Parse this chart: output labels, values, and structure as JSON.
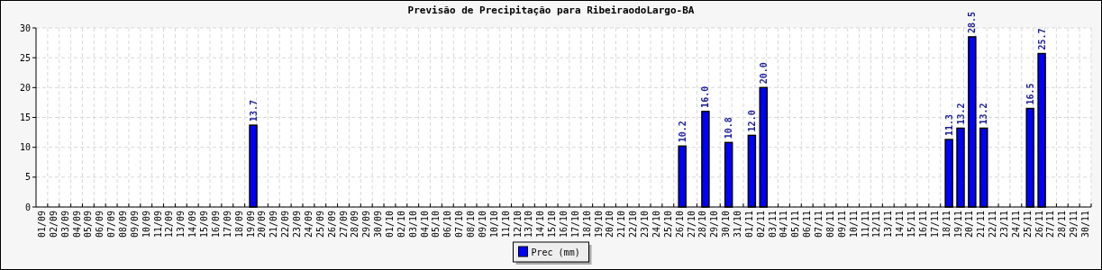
{
  "chart_data": {
    "type": "bar",
    "title": "Previsão de Precipitação para RibeiraodoLargo-BA",
    "categories": [
      "01/09",
      "02/09",
      "03/09",
      "04/09",
      "05/09",
      "06/09",
      "07/09",
      "08/09",
      "09/09",
      "10/09",
      "11/09",
      "12/09",
      "13/09",
      "14/09",
      "15/09",
      "16/09",
      "17/09",
      "18/09",
      "19/09",
      "20/09",
      "21/09",
      "22/09",
      "23/09",
      "24/09",
      "25/09",
      "26/09",
      "27/09",
      "28/09",
      "29/09",
      "30/09",
      "01/10",
      "02/10",
      "03/10",
      "04/10",
      "05/10",
      "06/10",
      "07/10",
      "08/10",
      "09/10",
      "10/10",
      "11/10",
      "12/10",
      "13/10",
      "14/10",
      "15/10",
      "16/10",
      "17/10",
      "18/10",
      "19/10",
      "20/10",
      "21/10",
      "22/10",
      "23/10",
      "24/10",
      "25/10",
      "26/10",
      "27/10",
      "28/10",
      "29/10",
      "30/10",
      "31/10",
      "01/11",
      "02/11",
      "03/11",
      "04/11",
      "05/11",
      "06/11",
      "07/11",
      "08/11",
      "09/11",
      "10/11",
      "11/11",
      "12/11",
      "13/11",
      "14/11",
      "15/11",
      "16/11",
      "17/11",
      "18/11",
      "19/11",
      "20/11",
      "21/11",
      "22/11",
      "23/11",
      "24/11",
      "25/11",
      "26/11",
      "27/11",
      "28/11",
      "29/11",
      "30/11"
    ],
    "series": [
      {
        "name": "Prec (mm)",
        "color": "#0000ff",
        "values": [
          0,
          0,
          0,
          0,
          0,
          0,
          0,
          0,
          0,
          0,
          0,
          0,
          0,
          0,
          0,
          0,
          0,
          0,
          13.7,
          0,
          0,
          0,
          0,
          0,
          0,
          0,
          0,
          0,
          0,
          0,
          0,
          0,
          0,
          0,
          0,
          0,
          0,
          0,
          0,
          0,
          0,
          0,
          0,
          0,
          0,
          0,
          0,
          0,
          0,
          0,
          0,
          0,
          0,
          0,
          0,
          10.2,
          0,
          16.0,
          0,
          10.8,
          0,
          12.0,
          20.0,
          0,
          0,
          0,
          0,
          0,
          0,
          0,
          0,
          0,
          0,
          0,
          0,
          0,
          0,
          0,
          11.3,
          13.2,
          28.5,
          13.2,
          0,
          0,
          0,
          16.5,
          25.7,
          0,
          0,
          0,
          0
        ],
        "value_labels": [
          null,
          null,
          null,
          null,
          null,
          null,
          null,
          null,
          null,
          null,
          null,
          null,
          null,
          null,
          null,
          null,
          null,
          null,
          "13.7",
          null,
          null,
          null,
          null,
          null,
          null,
          null,
          null,
          null,
          null,
          null,
          null,
          null,
          null,
          null,
          null,
          null,
          null,
          null,
          null,
          null,
          null,
          null,
          null,
          null,
          null,
          null,
          null,
          null,
          null,
          null,
          null,
          null,
          null,
          null,
          null,
          "10.2",
          null,
          "16.0",
          null,
          "10.8",
          null,
          "12.0",
          "20.0",
          null,
          null,
          null,
          null,
          null,
          null,
          null,
          null,
          null,
          null,
          null,
          null,
          null,
          null,
          null,
          "11.3",
          "13.2",
          "28.5",
          "13.2",
          null,
          null,
          null,
          "16.5",
          "25.7",
          null,
          null,
          null,
          null
        ]
      }
    ],
    "ylim": [
      0,
      30
    ],
    "yticks": [
      0,
      5,
      10,
      15,
      20,
      25,
      30
    ],
    "grid": true,
    "legend": "bottom"
  }
}
